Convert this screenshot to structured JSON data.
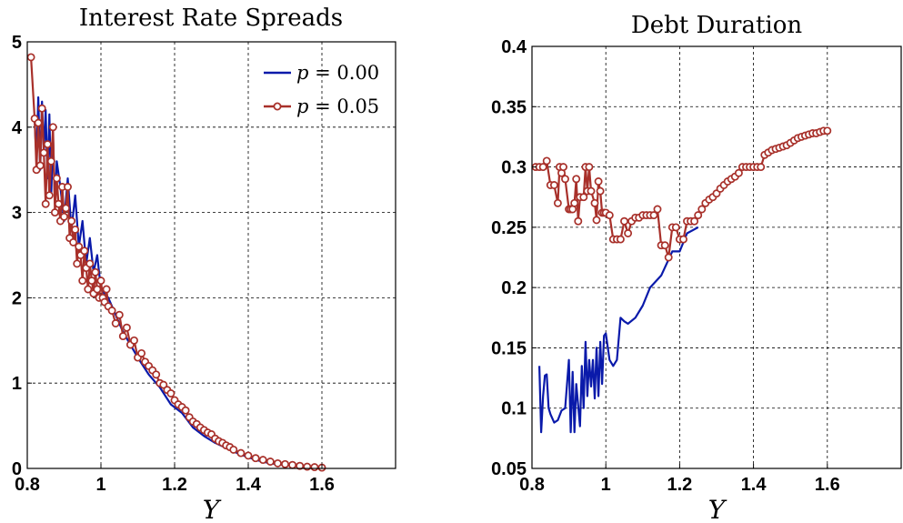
{
  "chart_data": [
    {
      "type": "line",
      "title": "Interest Rate Spreads",
      "xlabel": "Y",
      "ylabel": "",
      "xlim": [
        0.8,
        1.8
      ],
      "ylim": [
        0,
        5
      ],
      "xticks": [
        "0.8",
        "1",
        "1.2",
        "1.4",
        "1.6"
      ],
      "yticks": [
        "0",
        "1",
        "2",
        "3",
        "4",
        "5"
      ],
      "grid": true,
      "legend_position": "top-right",
      "series": [
        {
          "name": "p = 0.00",
          "legend_var": "p",
          "legend_value": "= 0.00",
          "color": "#0a1aaa",
          "marker": "none",
          "x": [
            0.82,
            0.825,
            0.83,
            0.835,
            0.84,
            0.845,
            0.85,
            0.855,
            0.86,
            0.865,
            0.87,
            0.875,
            0.88,
            0.89,
            0.9,
            0.91,
            0.92,
            0.93,
            0.94,
            0.95,
            0.96,
            0.97,
            0.98,
            0.99,
            1.0,
            1.02,
            1.04,
            1.06,
            1.08,
            1.1,
            1.13,
            1.16,
            1.19,
            1.22,
            1.25,
            1.28,
            1.31,
            1.34,
            1.37,
            1.4,
            1.43,
            1.46,
            1.5,
            1.55,
            1.6
          ],
          "y": [
            4.1,
            3.6,
            4.35,
            3.5,
            4.3,
            3.7,
            4.2,
            3.4,
            4.15,
            3.2,
            3.9,
            3.1,
            3.6,
            3.3,
            2.9,
            3.4,
            2.8,
            3.2,
            2.6,
            2.9,
            2.4,
            2.7,
            2.3,
            2.5,
            2.1,
            2.0,
            1.8,
            1.6,
            1.45,
            1.3,
            1.1,
            0.95,
            0.75,
            0.65,
            0.48,
            0.38,
            0.3,
            0.24,
            0.18,
            0.13,
            0.09,
            0.06,
            0.04,
            0.02,
            0.01
          ]
        },
        {
          "name": "p = 0.05",
          "legend_var": "p",
          "legend_value": "= 0.05",
          "color": "#a8302a",
          "marker": "circle",
          "x": [
            0.81,
            0.82,
            0.825,
            0.83,
            0.835,
            0.84,
            0.845,
            0.85,
            0.855,
            0.86,
            0.865,
            0.87,
            0.875,
            0.88,
            0.885,
            0.89,
            0.895,
            0.9,
            0.905,
            0.91,
            0.915,
            0.92,
            0.925,
            0.93,
            0.935,
            0.94,
            0.945,
            0.95,
            0.955,
            0.96,
            0.965,
            0.97,
            0.975,
            0.98,
            0.985,
            0.99,
            0.995,
            1.0,
            1.005,
            1.01,
            1.015,
            1.02,
            1.03,
            1.04,
            1.05,
            1.06,
            1.07,
            1.08,
            1.09,
            1.1,
            1.11,
            1.12,
            1.13,
            1.14,
            1.15,
            1.16,
            1.17,
            1.18,
            1.19,
            1.2,
            1.21,
            1.22,
            1.23,
            1.24,
            1.25,
            1.26,
            1.27,
            1.28,
            1.29,
            1.3,
            1.31,
            1.32,
            1.33,
            1.34,
            1.35,
            1.36,
            1.38,
            1.4,
            1.42,
            1.44,
            1.46,
            1.48,
            1.5,
            1.52,
            1.54,
            1.56,
            1.58,
            1.6
          ],
          "y": [
            4.82,
            4.1,
            3.5,
            4.05,
            3.55,
            4.22,
            3.7,
            3.1,
            3.8,
            3.2,
            3.6,
            4.0,
            3.0,
            3.4,
            3.1,
            2.9,
            3.3,
            2.95,
            3.05,
            3.3,
            2.7,
            2.9,
            2.65,
            2.8,
            2.4,
            2.6,
            2.5,
            2.2,
            2.55,
            2.35,
            2.1,
            2.4,
            2.2,
            2.05,
            2.3,
            2.1,
            2.0,
            2.2,
            2.0,
            1.95,
            2.1,
            1.9,
            1.85,
            1.7,
            1.8,
            1.55,
            1.65,
            1.45,
            1.5,
            1.3,
            1.35,
            1.25,
            1.2,
            1.15,
            1.1,
            1.0,
            0.98,
            0.92,
            0.88,
            0.8,
            0.75,
            0.72,
            0.68,
            0.6,
            0.55,
            0.52,
            0.48,
            0.45,
            0.42,
            0.4,
            0.35,
            0.32,
            0.3,
            0.27,
            0.25,
            0.22,
            0.18,
            0.15,
            0.12,
            0.1,
            0.08,
            0.06,
            0.05,
            0.04,
            0.03,
            0.02,
            0.015,
            0.01
          ]
        }
      ]
    },
    {
      "type": "line",
      "title": "Debt Duration",
      "xlabel": "Y",
      "ylabel": "",
      "xlim": [
        0.8,
        1.8
      ],
      "ylim": [
        0.05,
        0.4
      ],
      "xticks": [
        "0.8",
        "1",
        "1.2",
        "1.4",
        "1.6"
      ],
      "yticks": [
        "0.05",
        "0.1",
        "0.15",
        "0.2",
        "0.25",
        "0.3",
        "0.35",
        "0.4"
      ],
      "grid": true,
      "series": [
        {
          "name": "p = 0.00",
          "color": "#0a1aaa",
          "marker": "none",
          "x": [
            0.82,
            0.825,
            0.83,
            0.835,
            0.84,
            0.845,
            0.85,
            0.86,
            0.87,
            0.88,
            0.89,
            0.9,
            0.905,
            0.91,
            0.915,
            0.92,
            0.93,
            0.935,
            0.94,
            0.945,
            0.95,
            0.955,
            0.96,
            0.965,
            0.97,
            0.975,
            0.98,
            0.985,
            0.99,
            0.995,
            1.0,
            1.01,
            1.02,
            1.03,
            1.04,
            1.05,
            1.06,
            1.08,
            1.1,
            1.12,
            1.15,
            1.18,
            1.2,
            1.22,
            1.25
          ],
          "y": [
            0.135,
            0.08,
            0.11,
            0.127,
            0.128,
            0.1,
            0.095,
            0.088,
            0.09,
            0.098,
            0.1,
            0.14,
            0.08,
            0.13,
            0.08,
            0.12,
            0.085,
            0.135,
            0.1,
            0.155,
            0.11,
            0.14,
            0.118,
            0.14,
            0.108,
            0.15,
            0.11,
            0.155,
            0.12,
            0.16,
            0.162,
            0.14,
            0.135,
            0.14,
            0.175,
            0.172,
            0.17,
            0.175,
            0.185,
            0.2,
            0.21,
            0.23,
            0.23,
            0.245,
            0.25
          ]
        },
        {
          "name": "p = 0.05",
          "color": "#a8302a",
          "marker": "circle",
          "x": [
            0.81,
            0.82,
            0.83,
            0.84,
            0.85,
            0.86,
            0.87,
            0.875,
            0.88,
            0.885,
            0.89,
            0.9,
            0.905,
            0.91,
            0.915,
            0.92,
            0.925,
            0.93,
            0.94,
            0.945,
            0.95,
            0.955,
            0.96,
            0.97,
            0.975,
            0.98,
            0.985,
            0.99,
            0.995,
            1.0,
            1.01,
            1.02,
            1.03,
            1.04,
            1.05,
            1.06,
            1.07,
            1.08,
            1.09,
            1.1,
            1.11,
            1.12,
            1.13,
            1.14,
            1.15,
            1.16,
            1.17,
            1.18,
            1.19,
            1.2,
            1.21,
            1.22,
            1.23,
            1.24,
            1.25,
            1.26,
            1.27,
            1.28,
            1.29,
            1.3,
            1.31,
            1.32,
            1.33,
            1.34,
            1.35,
            1.36,
            1.37,
            1.38,
            1.39,
            1.4,
            1.41,
            1.42,
            1.43,
            1.44,
            1.45,
            1.46,
            1.47,
            1.48,
            1.49,
            1.5,
            1.51,
            1.52,
            1.53,
            1.54,
            1.55,
            1.56,
            1.57,
            1.58,
            1.59,
            1.6
          ],
          "y": [
            0.3,
            0.3,
            0.3,
            0.305,
            0.285,
            0.285,
            0.27,
            0.3,
            0.295,
            0.3,
            0.29,
            0.265,
            0.265,
            0.265,
            0.27,
            0.29,
            0.255,
            0.275,
            0.275,
            0.3,
            0.28,
            0.3,
            0.28,
            0.27,
            0.256,
            0.288,
            0.28,
            0.262,
            0.262,
            0.262,
            0.26,
            0.24,
            0.24,
            0.24,
            0.255,
            0.245,
            0.255,
            0.258,
            0.258,
            0.26,
            0.26,
            0.26,
            0.26,
            0.265,
            0.235,
            0.235,
            0.225,
            0.25,
            0.25,
            0.24,
            0.24,
            0.255,
            0.255,
            0.255,
            0.26,
            0.265,
            0.27,
            0.273,
            0.275,
            0.278,
            0.282,
            0.285,
            0.288,
            0.29,
            0.292,
            0.295,
            0.3,
            0.3,
            0.3,
            0.3,
            0.3,
            0.3,
            0.31,
            0.312,
            0.314,
            0.315,
            0.316,
            0.317,
            0.318,
            0.32,
            0.322,
            0.324,
            0.325,
            0.326,
            0.327,
            0.328,
            0.328,
            0.329,
            0.33,
            0.33
          ]
        }
      ]
    }
  ]
}
